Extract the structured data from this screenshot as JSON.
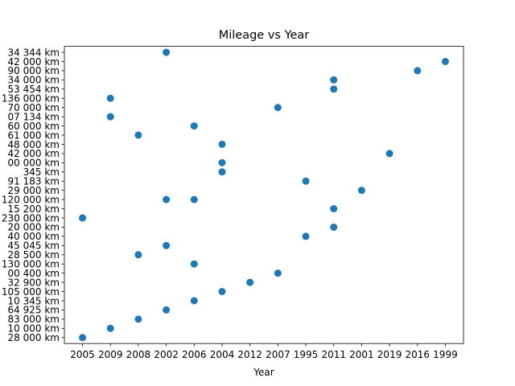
{
  "chart_data": {
    "type": "scatter",
    "title": "Mileage vs Year",
    "xlabel": "Year",
    "ylabel": "",
    "grid": false,
    "x_categories": [
      "2005",
      "2009",
      "2008",
      "2002",
      "2006",
      "2004",
      "2012",
      "2007",
      "1995",
      "2011",
      "2001",
      "2019",
      "2016",
      "1999"
    ],
    "y_categories": [
      "28 000 km",
      "10 000 km",
      "83 000 km",
      "64 925 km",
      "10 345 km",
      "105 000 km",
      "32 900 km",
      "00 400 km",
      "130 000 km",
      "28 500 km",
      "45 045 km",
      "40 000 km",
      "20 000 km",
      "230 000 km",
      "15 200 km",
      "120 000 km",
      "29 000 km",
      "91 183 km",
      "345 km",
      "00 000 km",
      "42 000 km",
      "48 000 km",
      "61 000 km",
      "60 000 km",
      "07 134 km",
      "70 000 km",
      "136 000 km",
      "53 454 km",
      "34 000 km",
      "90 000 km",
      "42 000 km",
      "34 344 km"
    ],
    "points": [
      {
        "x": "2002",
        "y": "34 344 km"
      },
      {
        "x": "1999",
        "y": "42 000 km"
      },
      {
        "x": "2016",
        "y": "90 000 km"
      },
      {
        "x": "2011",
        "y": "34 000 km"
      },
      {
        "x": "2011",
        "y": "53 454 km"
      },
      {
        "x": "2009",
        "y": "136 000 km"
      },
      {
        "x": "2007",
        "y": "70 000 km"
      },
      {
        "x": "2009",
        "y": "07 134 km"
      },
      {
        "x": "2006",
        "y": "60 000 km"
      },
      {
        "x": "2008",
        "y": "61 000 km"
      },
      {
        "x": "2004",
        "y": "48 000 km"
      },
      {
        "x": "2019",
        "y": "42 000 km"
      },
      {
        "x": "2004",
        "y": "00 000 km"
      },
      {
        "x": "2004",
        "y": "345 km"
      },
      {
        "x": "1995",
        "y": "91 183 km"
      },
      {
        "x": "2001",
        "y": "29 000 km"
      },
      {
        "x": "2002",
        "y": "120 000 km"
      },
      {
        "x": "2006",
        "y": "120 000 km"
      },
      {
        "x": "2011",
        "y": "15 200 km"
      },
      {
        "x": "2005",
        "y": "230 000 km"
      },
      {
        "x": "2011",
        "y": "20 000 km"
      },
      {
        "x": "1995",
        "y": "40 000 km"
      },
      {
        "x": "2002",
        "y": "45 045 km"
      },
      {
        "x": "2008",
        "y": "28 500 km"
      },
      {
        "x": "2006",
        "y": "130 000 km"
      },
      {
        "x": "2007",
        "y": "00 400 km"
      },
      {
        "x": "2012",
        "y": "32 900 km"
      },
      {
        "x": "2004",
        "y": "105 000 km"
      },
      {
        "x": "2006",
        "y": "10 345 km"
      },
      {
        "x": "2002",
        "y": "64 925 km"
      },
      {
        "x": "2008",
        "y": "83 000 km"
      },
      {
        "x": "2009",
        "y": "10 000 km"
      },
      {
        "x": "2005",
        "y": "28 000 km"
      }
    ],
    "marker_color": "#1f77b4"
  }
}
